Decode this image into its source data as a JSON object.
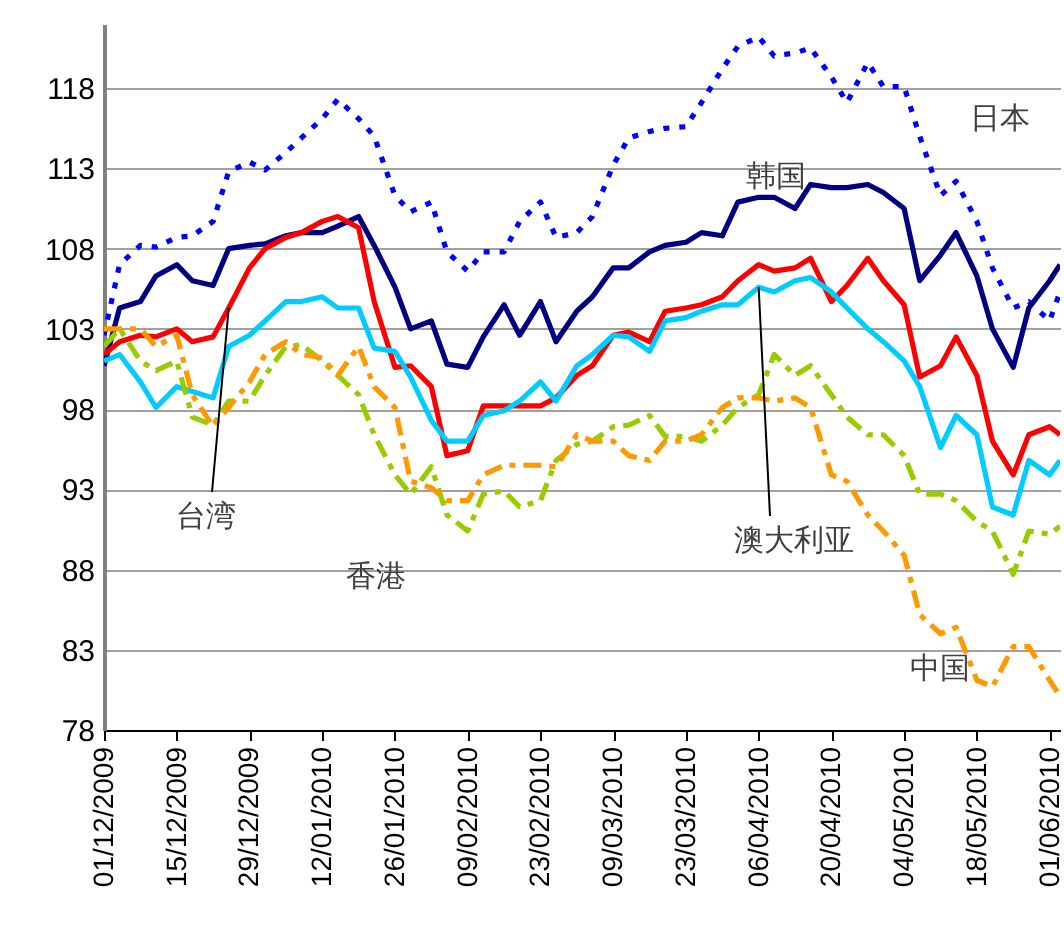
{
  "chart_data": {
    "type": "line",
    "x": [
      "2009-12-01",
      "2009-12-04",
      "2009-12-08",
      "2009-12-11",
      "2009-12-15",
      "2009-12-18",
      "2009-12-22",
      "2009-12-25",
      "2009-12-29",
      "2010-01-01",
      "2010-01-05",
      "2010-01-08",
      "2010-01-12",
      "2010-01-15",
      "2010-01-19",
      "2010-01-22",
      "2010-01-26",
      "2010-01-29",
      "2010-02-02",
      "2010-02-05",
      "2010-02-09",
      "2010-02-12",
      "2010-02-16",
      "2010-02-19",
      "2010-02-23",
      "2010-02-26",
      "2010-03-02",
      "2010-03-05",
      "2010-03-09",
      "2010-03-12",
      "2010-03-16",
      "2010-03-19",
      "2010-03-23",
      "2010-03-26",
      "2010-03-30",
      "2010-04-02",
      "2010-04-06",
      "2010-04-09",
      "2010-04-13",
      "2010-04-16",
      "2010-04-20",
      "2010-04-23",
      "2010-04-27",
      "2010-04-30",
      "2010-05-04",
      "2010-05-07",
      "2010-05-11",
      "2010-05-14",
      "2010-05-18",
      "2010-05-21",
      "2010-05-25",
      "2010-05-28",
      "2010-06-01",
      "2010-06-03"
    ],
    "series": [
      {
        "name": "日本",
        "color": "#0000ff",
        "line_style": "dotted",
        "values": [
          102.6,
          107,
          108.2,
          108.1,
          108.7,
          108.8,
          109.7,
          112.8,
          113.4,
          112.9,
          114,
          114.9,
          116.1,
          117.3,
          116.1,
          115,
          111.3,
          110.3,
          110.9,
          107.8,
          106.6,
          107.8,
          107.8,
          109.7,
          110.9,
          108.7,
          109,
          110,
          113.2,
          114.9,
          115.3,
          115.5,
          115.6,
          117.1,
          119.2,
          120.6,
          121.2,
          120,
          120.2,
          120.5,
          118.7,
          117.1,
          119.6,
          118.1,
          118.1,
          115,
          111.3,
          112.2,
          109.7,
          106.8,
          104.3,
          104.7,
          103.5,
          105.3
        ]
      },
      {
        "name": "韩国",
        "color": "#000080",
        "line_style": "solid",
        "values": [
          100.7,
          104.3,
          104.7,
          106.3,
          107,
          106,
          105.7,
          108,
          108.2,
          108.3,
          108.8,
          109,
          109,
          109.4,
          110,
          108.2,
          105.6,
          103,
          103.5,
          100.8,
          100.6,
          102.5,
          104.5,
          102.6,
          104.7,
          102.2,
          104.1,
          105,
          106.8,
          106.8,
          107.8,
          108.2,
          108.4,
          109,
          108.8,
          110.9,
          111.2,
          111.2,
          110.5,
          112,
          111.8,
          111.8,
          112,
          111.5,
          110.5,
          106,
          107.6,
          109,
          106.3,
          103,
          100.6,
          104.3,
          106,
          107
        ]
      },
      {
        "name": "台湾",
        "color": "#ff0000",
        "line_style": "solid",
        "values": [
          101.4,
          102.2,
          102.6,
          102.5,
          103,
          102.2,
          102.5,
          104.3,
          106.8,
          108,
          108.7,
          109,
          109.7,
          110,
          109.3,
          104.7,
          100.6,
          100.7,
          99.4,
          95.1,
          95.4,
          98.2,
          98.2,
          98.2,
          98.2,
          98.7,
          100.1,
          100.7,
          102.6,
          102.8,
          102.2,
          104.1,
          104.3,
          104.5,
          105,
          106,
          107,
          106.6,
          106.8,
          107.4,
          104.7,
          105.7,
          107.4,
          106,
          104.5,
          100,
          100.7,
          102.5,
          100.1,
          96,
          93.9,
          96.4,
          96.9,
          96.4
        ]
      },
      {
        "name": "澳大利亚",
        "color": "#00ccff",
        "line_style": "solid",
        "values": [
          101,
          101.4,
          99.7,
          98.1,
          99.4,
          99.1,
          98.7,
          101.9,
          102.6,
          103.5,
          104.7,
          104.7,
          105,
          104.3,
          104.3,
          101.8,
          101.6,
          100,
          97.3,
          96,
          96,
          97.6,
          97.9,
          98.5,
          99.7,
          98.5,
          100.7,
          101.4,
          102.6,
          102.5,
          101.6,
          103.5,
          103.7,
          104.1,
          104.5,
          104.5,
          105.6,
          105.3,
          106,
          106.2,
          105.3,
          104.3,
          103,
          102.2,
          101,
          99.4,
          95.6,
          97.6,
          96.4,
          91.9,
          91.4,
          94.8,
          93.9,
          94.8
        ]
      },
      {
        "name": "香港",
        "color": "#99cc00",
        "line_style": "dashed",
        "values": [
          101.9,
          103,
          101,
          100.4,
          101,
          97.5,
          97,
          98.5,
          98.5,
          100.1,
          101.9,
          102,
          101,
          100.1,
          98.9,
          96.4,
          93.9,
          92.7,
          94.4,
          91.4,
          90.4,
          92.7,
          92.9,
          91.9,
          92.3,
          94.8,
          95.8,
          96,
          96.9,
          97,
          97.6,
          96.3,
          96.3,
          96,
          97,
          98.1,
          98.9,
          101.4,
          100.1,
          100.7,
          98.9,
          97.5,
          96.4,
          96.4,
          95.1,
          92.7,
          92.7,
          92.3,
          91,
          90.4,
          87.7,
          90.4,
          90.2,
          90.7
        ]
      },
      {
        "name": "中国",
        "color": "#ff9900",
        "line_style": "dashed",
        "values": [
          103,
          103,
          103,
          101.9,
          102.6,
          98.9,
          96.9,
          98.1,
          99.7,
          101.4,
          102.2,
          101.4,
          101.2,
          100.1,
          101.9,
          99.4,
          98.1,
          93.5,
          93.1,
          92.3,
          92.3,
          93.9,
          94.5,
          94.5,
          94.5,
          94.4,
          96.4,
          96,
          96,
          95.1,
          94.8,
          96,
          96,
          96.4,
          98.1,
          98.7,
          98.7,
          98.5,
          98.7,
          98.1,
          93.9,
          93.5,
          91.4,
          90.4,
          88.9,
          85.2,
          84,
          84.4,
          81.1,
          80.7,
          83.2,
          83.2,
          81.1,
          80.1
        ]
      }
    ],
    "xlim": [
      "2009-12-01",
      "2010-06-03"
    ],
    "xticks": [
      {
        "value": "2009-12-01",
        "label": "01/12/2009"
      },
      {
        "value": "2009-12-15",
        "label": "15/12/2009"
      },
      {
        "value": "2009-12-29",
        "label": "29/12/2009"
      },
      {
        "value": "2010-01-12",
        "label": "12/01/2010"
      },
      {
        "value": "2010-01-26",
        "label": "26/01/2010"
      },
      {
        "value": "2010-02-09",
        "label": "09/02/2010"
      },
      {
        "value": "2010-02-23",
        "label": "23/02/2010"
      },
      {
        "value": "2010-03-09",
        "label": "09/03/2010"
      },
      {
        "value": "2010-03-23",
        "label": "23/03/2010"
      },
      {
        "value": "2010-04-06",
        "label": "06/04/2010"
      },
      {
        "value": "2010-04-20",
        "label": "20/04/2010"
      },
      {
        "value": "2010-05-04",
        "label": "04/05/2010"
      },
      {
        "value": "2010-05-18",
        "label": "18/05/2010"
      },
      {
        "value": "2010-06-01",
        "label": "01/06/2010"
      }
    ],
    "ylim": [
      78,
      122
    ],
    "yticks": [
      78,
      83,
      88,
      93,
      98,
      103,
      108,
      113,
      118
    ],
    "grid": "y"
  }
}
